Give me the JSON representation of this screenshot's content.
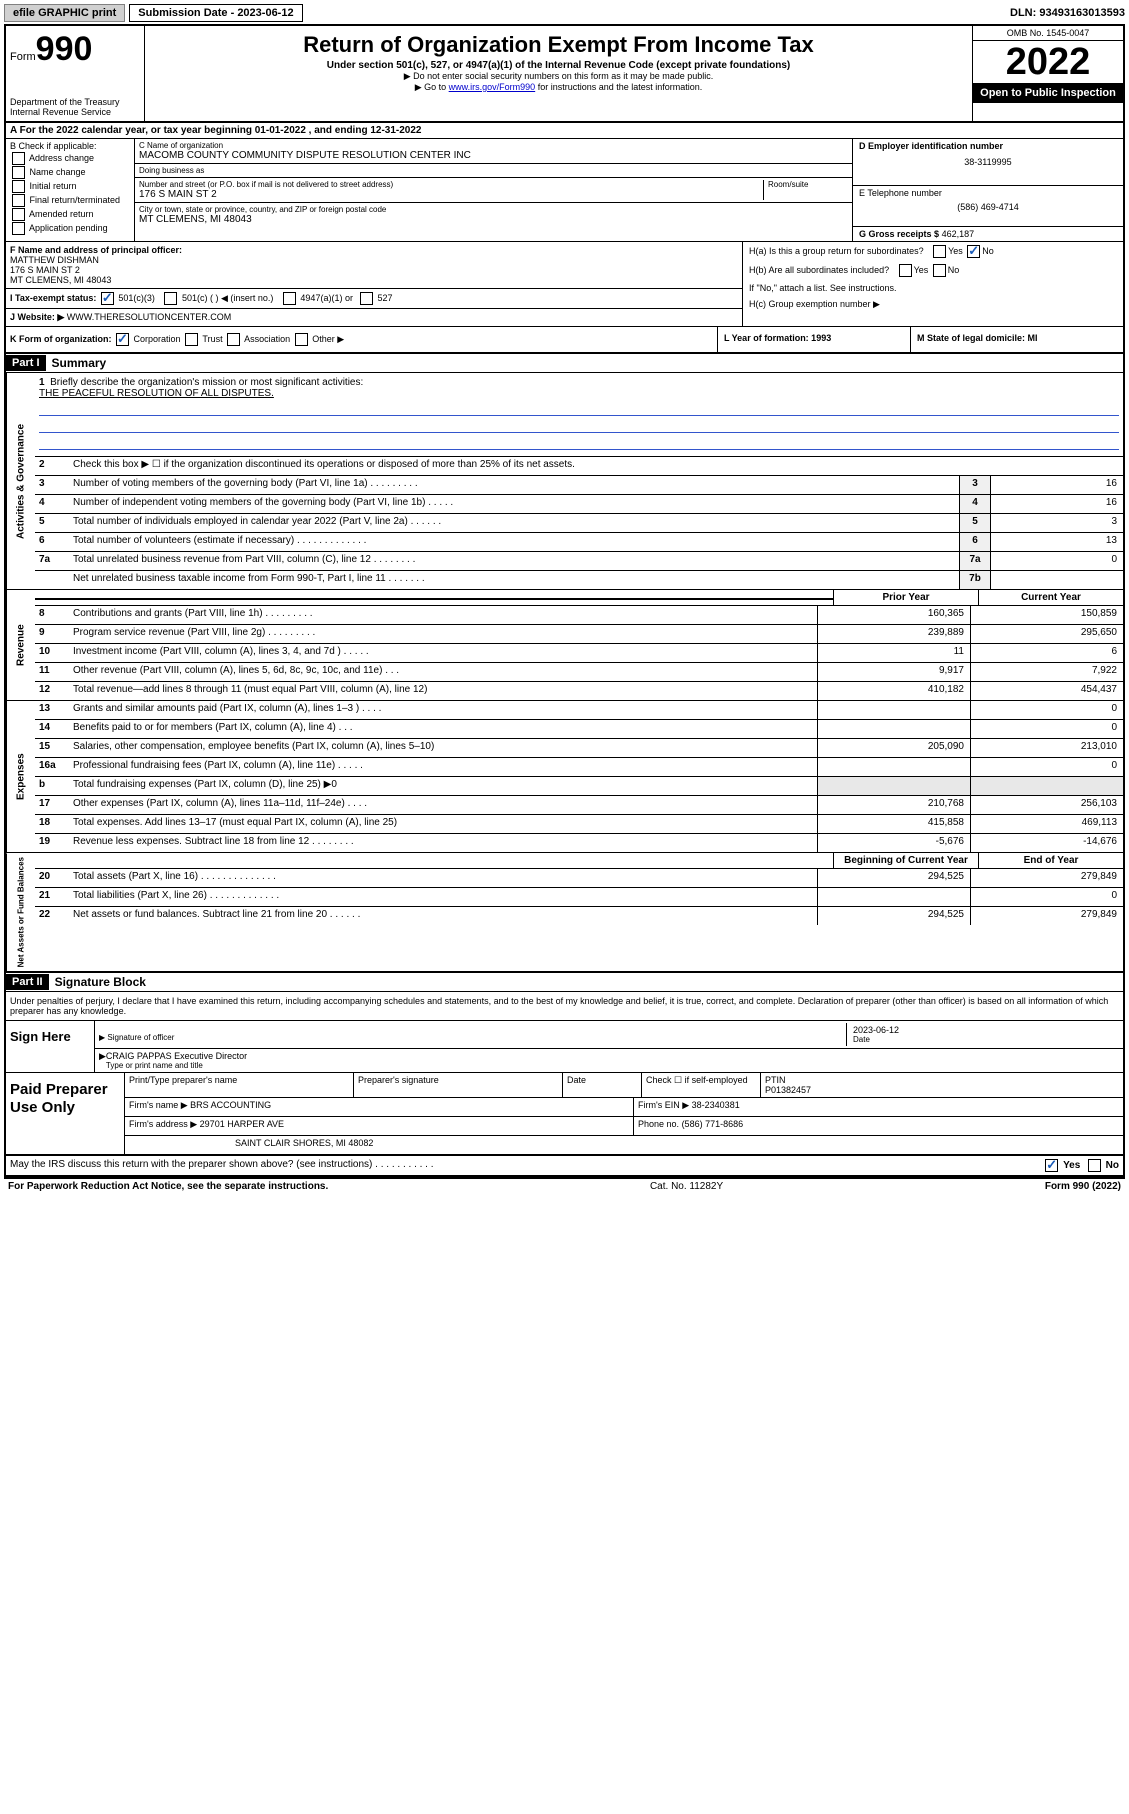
{
  "topbar": {
    "efile": "efile GRAPHIC print",
    "subdate_label": "Submission Date - 2023-06-12",
    "dln": "DLN: 93493163013593"
  },
  "header": {
    "form_prefix": "Form",
    "form_number": "990",
    "dept": "Department of the Treasury",
    "irs": "Internal Revenue Service",
    "title": "Return of Organization Exempt From Income Tax",
    "subtitle": "Under section 501(c), 527, or 4947(a)(1) of the Internal Revenue Code (except private foundations)",
    "note1": "▶ Do not enter social security numbers on this form as it may be made public.",
    "note2_pre": "▶ Go to ",
    "note2_link": "www.irs.gov/Form990",
    "note2_post": " for instructions and the latest information.",
    "omb": "OMB No. 1545-0047",
    "year": "2022",
    "inspect": "Open to Public Inspection"
  },
  "row_a": {
    "text_pre": "A For the 2022 calendar year, or tax year beginning ",
    "begin": "01-01-2022",
    "mid": " , and ending ",
    "end": "12-31-2022"
  },
  "section_b": {
    "label": "B Check if applicable:",
    "opts": [
      "Address change",
      "Name change",
      "Initial return",
      "Final return/terminated",
      "Amended return",
      "Application pending"
    ]
  },
  "section_c": {
    "name_label": "C Name of organization",
    "name": "MACOMB COUNTY COMMUNITY DISPUTE RESOLUTION CENTER INC",
    "dba_label": "Doing business as",
    "dba": "",
    "street_label": "Number and street (or P.O. box if mail is not delivered to street address)",
    "street": "176 S MAIN ST 2",
    "room_label": "Room/suite",
    "city_label": "City or town, state or province, country, and ZIP or foreign postal code",
    "city": "MT CLEMENS, MI  48043"
  },
  "section_d": {
    "label": "D Employer identification number",
    "value": "38-3119995"
  },
  "section_e": {
    "label": "E Telephone number",
    "value": "(586) 469-4714"
  },
  "section_g": {
    "label": "G Gross receipts $",
    "value": "462,187"
  },
  "section_f": {
    "label": "F Name and address of principal officer:",
    "name": "MATTHEW DISHMAN",
    "addr1": "176 S MAIN ST 2",
    "addr2": "MT CLEMENS, MI  48043"
  },
  "section_h": {
    "a": "H(a)  Is this a group return for subordinates?",
    "b": "H(b)  Are all subordinates included?",
    "bnote": "If \"No,\" attach a list. See instructions.",
    "c": "H(c)  Group exemption number ▶"
  },
  "section_i": {
    "label": "I   Tax-exempt status:",
    "opts": [
      "501(c)(3)",
      "501(c) (  ) ◀ (insert no.)",
      "4947(a)(1) or",
      "527"
    ]
  },
  "section_j": {
    "label": "J   Website: ▶",
    "value": "WWW.THERESOLUTIONCENTER.COM"
  },
  "section_k": {
    "label": "K Form of organization:",
    "opts": [
      "Corporation",
      "Trust",
      "Association",
      "Other ▶"
    ],
    "l": "L Year of formation: 1993",
    "m": "M State of legal domicile: MI"
  },
  "part1": {
    "header": "Part I",
    "title": "Summary"
  },
  "governance": {
    "label": "Activities & Governance",
    "l1": "Briefly describe the organization's mission or most significant activities:",
    "l1val": "THE PEACEFUL RESOLUTION OF ALL DISPUTES.",
    "l2": "Check this box ▶ ☐  if the organization discontinued its operations or disposed of more than 25% of its net assets.",
    "l3": "Number of voting members of the governing body (Part VI, line 1a)   .    .    .    .    .    .    .    .    .",
    "l3v": "16",
    "l4": "Number of independent voting members of the governing body (Part VI, line 1b)   .    .    .    .    .",
    "l4v": "16",
    "l5": "Total number of individuals employed in calendar year 2022 (Part V, line 2a)   .    .    .    .    .    .",
    "l5v": "3",
    "l6": "Total number of volunteers (estimate if necessary)   .    .    .    .    .    .    .    .    .    .    .    .    .",
    "l6v": "13",
    "l7a": "Total unrelated business revenue from Part VIII, column (C), line 12   .    .    .    .    .    .    .    .",
    "l7av": "0",
    "l7b": "Net unrelated business taxable income from Form 990-T, Part I, line 11   .    .    .    .    .    .    .",
    "l7bv": ""
  },
  "yearheaders": {
    "py": "Prior Year",
    "cy": "Current Year",
    "boy": "Beginning of Current Year",
    "eoy": "End of Year"
  },
  "revenue": {
    "label": "Revenue",
    "rows": [
      {
        "n": "8",
        "d": "Contributions and grants (Part VIII, line 1h)   .    .    .    .    .    .    .    .    .",
        "py": "160,365",
        "cy": "150,859"
      },
      {
        "n": "9",
        "d": "Program service revenue (Part VIII, line 2g)   .    .    .    .    .    .    .    .    .",
        "py": "239,889",
        "cy": "295,650"
      },
      {
        "n": "10",
        "d": "Investment income (Part VIII, column (A), lines 3, 4, and 7d )   .    .    .    .    .",
        "py": "11",
        "cy": "6"
      },
      {
        "n": "11",
        "d": "Other revenue (Part VIII, column (A), lines 5, 6d, 8c, 9c, 10c, and 11e)   .    .    .",
        "py": "9,917",
        "cy": "7,922"
      },
      {
        "n": "12",
        "d": "Total revenue—add lines 8 through 11 (must equal Part VIII, column (A), line 12)",
        "py": "410,182",
        "cy": "454,437"
      }
    ]
  },
  "expenses": {
    "label": "Expenses",
    "rows": [
      {
        "n": "13",
        "d": "Grants and similar amounts paid (Part IX, column (A), lines 1–3 )   .    .    .    .",
        "py": "",
        "cy": "0"
      },
      {
        "n": "14",
        "d": "Benefits paid to or for members (Part IX, column (A), line 4)   .    .    .",
        "py": "",
        "cy": "0"
      },
      {
        "n": "15",
        "d": "Salaries, other compensation, employee benefits (Part IX, column (A), lines 5–10)",
        "py": "205,090",
        "cy": "213,010"
      },
      {
        "n": "16a",
        "d": "Professional fundraising fees (Part IX, column (A), line 11e)   .    .    .    .    .",
        "py": "",
        "cy": "0"
      },
      {
        "n": "b",
        "d": "Total fundraising expenses (Part IX, column (D), line 25) ▶0",
        "py": "__GREY__",
        "cy": "__GREY__"
      },
      {
        "n": "17",
        "d": "Other expenses (Part IX, column (A), lines 11a–11d, 11f–24e)   .    .    .    .",
        "py": "210,768",
        "cy": "256,103"
      },
      {
        "n": "18",
        "d": "Total expenses. Add lines 13–17 (must equal Part IX, column (A), line 25)",
        "py": "415,858",
        "cy": "469,113"
      },
      {
        "n": "19",
        "d": "Revenue less expenses. Subtract line 18 from line 12   .    .    .    .    .    .    .    .",
        "py": "-5,676",
        "cy": "-14,676"
      }
    ]
  },
  "netassets": {
    "label": "Net Assets or Fund Balances",
    "rows": [
      {
        "n": "20",
        "d": "Total assets (Part X, line 16)   .    .    .    .    .    .    .    .    .    .    .    .    .    .",
        "py": "294,525",
        "cy": "279,849"
      },
      {
        "n": "21",
        "d": "Total liabilities (Part X, line 26)   .    .    .    .    .    .    .    .    .    .    .    .    .",
        "py": "",
        "cy": "0"
      },
      {
        "n": "22",
        "d": "Net assets or fund balances. Subtract line 21 from line 20   .    .    .    .    .    .",
        "py": "294,525",
        "cy": "279,849"
      }
    ]
  },
  "part2": {
    "header": "Part II",
    "title": "Signature Block",
    "declare": "Under penalties of perjury, I declare that I have examined this return, including accompanying schedules and statements, and to the best of my knowledge and belief, it is true, correct, and complete. Declaration of preparer (other than officer) is based on all information of which preparer has any knowledge."
  },
  "sign": {
    "label": "Sign Here",
    "sig_label": "Signature of officer",
    "date_label": "Date",
    "date": "2023-06-12",
    "name": "CRAIG PAPPAS Executive Director",
    "name_label": "Type or print name and title"
  },
  "paid": {
    "label": "Paid Preparer Use Only",
    "h1": "Print/Type preparer's name",
    "h2": "Preparer's signature",
    "h3": "Date",
    "h4_pre": "Check ☐ if self-employed",
    "h5": "PTIN",
    "ptin": "P01382457",
    "firm_label": "Firm's name    ▶",
    "firm": "BRS ACCOUNTING",
    "ein_label": "Firm's EIN ▶",
    "ein": "38-2340381",
    "addr_label": "Firm's address ▶",
    "addr1": "29701 HARPER AVE",
    "addr2": "SAINT CLAIR SHORES, MI  48082",
    "phone_label": "Phone no.",
    "phone": "(586) 771-8686"
  },
  "discuss": {
    "text": "May the IRS discuss this return with the preparer shown above? (see instructions)   .    .    .    .    .    .    .    .    .    .    .",
    "yes": "Yes",
    "no": "No"
  },
  "footer": {
    "left": "For Paperwork Reduction Act Notice, see the separate instructions.",
    "mid": "Cat. No. 11282Y",
    "right": "Form 990 (2022)"
  }
}
